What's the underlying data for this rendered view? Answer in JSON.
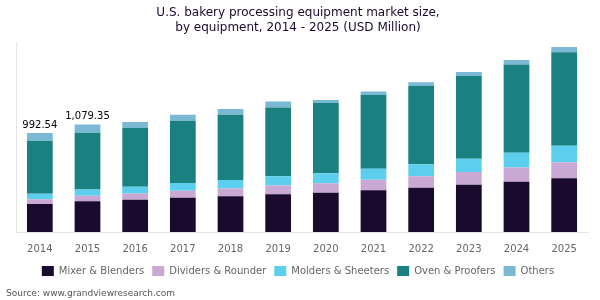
{
  "chart_data": {
    "type": "bar",
    "title": "U.S. bakery processing equipment market size,\nby equipment, 2014 - 2025 (USD Million)",
    "categories": [
      "2014",
      "2015",
      "2016",
      "2017",
      "2018",
      "2019",
      "2020",
      "2021",
      "2022",
      "2023",
      "2024",
      "2025"
    ],
    "series": [
      {
        "name": "Mixer & Blenders",
        "color": "#1a0a2e",
        "values": [
          280,
          310,
          325,
          345,
          360,
          380,
          395,
          420,
          445,
          475,
          505,
          540
        ]
      },
      {
        "name": "Dividers & Rounder",
        "color": "#c9a8d4",
        "values": [
          48,
          55,
          62,
          70,
          78,
          87,
          95,
          105,
          115,
          128,
          143,
          160
        ]
      },
      {
        "name": "Molders & Sheeters",
        "color": "#5dcfee",
        "values": [
          55,
          62,
          68,
          76,
          84,
          93,
          100,
          110,
          120,
          133,
          148,
          165
        ]
      },
      {
        "name": "Oven & Proofers",
        "color": "#1a8080",
        "values": [
          530,
          570,
          590,
          625,
          655,
          690,
          705,
          740,
          785,
          830,
          885,
          940
        ]
      },
      {
        "name": "Others",
        "color": "#7ab8d4",
        "values": [
          80,
          82,
          60,
          62,
          58,
          60,
          30,
          35,
          38,
          42,
          47,
          53
        ]
      }
    ],
    "stacked": true,
    "ylim": [
      0,
      1900
    ],
    "tick_labels": "x",
    "grid": false,
    "legend": "bottom",
    "annotations": [
      {
        "x": "2014",
        "text": "992.54"
      },
      {
        "x": "2015",
        "text": "1,079.35"
      }
    ],
    "source": "Source: www.grandviewresearch.com"
  }
}
